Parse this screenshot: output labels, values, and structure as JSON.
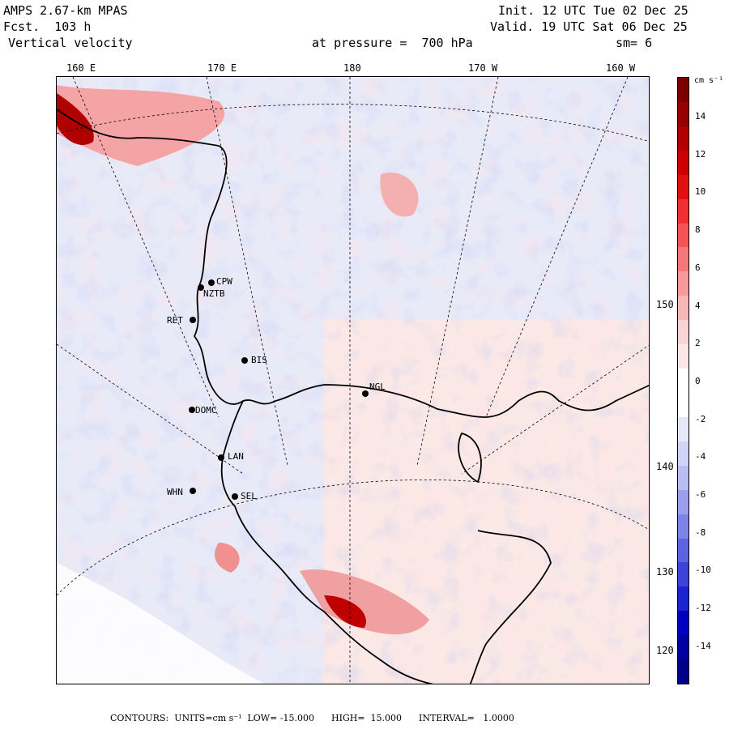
{
  "header": {
    "model": "AMPS 2.67-km MPAS",
    "fcst": "Fcst.  103 h",
    "field": "Vertical velocity",
    "init": "Init. 12 UTC Tue 02 Dec 25",
    "valid": "Valid. 19 UTC Sat 06 Dec 25",
    "pressure": "at pressure =  700 hPa",
    "smooth": "sm= 6"
  },
  "longitudes": [
    "160 E",
    "170 E",
    "180",
    "170 W",
    "160 W"
  ],
  "latitudes": [
    "150 W",
    "140 W",
    "130 W",
    "120 W"
  ],
  "stations": [
    {
      "name": "CPW"
    },
    {
      "name": "NZTB"
    },
    {
      "name": "RET"
    },
    {
      "name": "BIS"
    },
    {
      "name": "NGL"
    },
    {
      "name": "DOMC"
    },
    {
      "name": "LAN"
    },
    {
      "name": "WHN"
    },
    {
      "name": "SEL"
    }
  ],
  "colorbar": {
    "units": "cm s⁻¹",
    "ticks": [
      "14",
      "12",
      "10",
      "8",
      "6",
      "4",
      "2",
      "0",
      "-2",
      "-4",
      "-6",
      "-8",
      "-10",
      "-12",
      "-14"
    ],
    "colors": [
      "#7a0000",
      "#960000",
      "#b00000",
      "#cc0000",
      "#e01010",
      "#f03030",
      "#f45454",
      "#f47878",
      "#f69a9a",
      "#f8b8b8",
      "#fad4d4",
      "#fce6e6",
      "#ffffff",
      "#ffffff",
      "#e6e8fa",
      "#d0d4f6",
      "#b8bef2",
      "#9aa0ec",
      "#7c84e6",
      "#5c64e0",
      "#3c44d8",
      "#1c24d0",
      "#0000c0",
      "#0000a0",
      "#000088"
    ]
  },
  "footer": "CONTOURS:  UNITS=cm s⁻¹  LOW= -15.000      HIGH=  15.000      INTERVAL=   1.0000"
}
